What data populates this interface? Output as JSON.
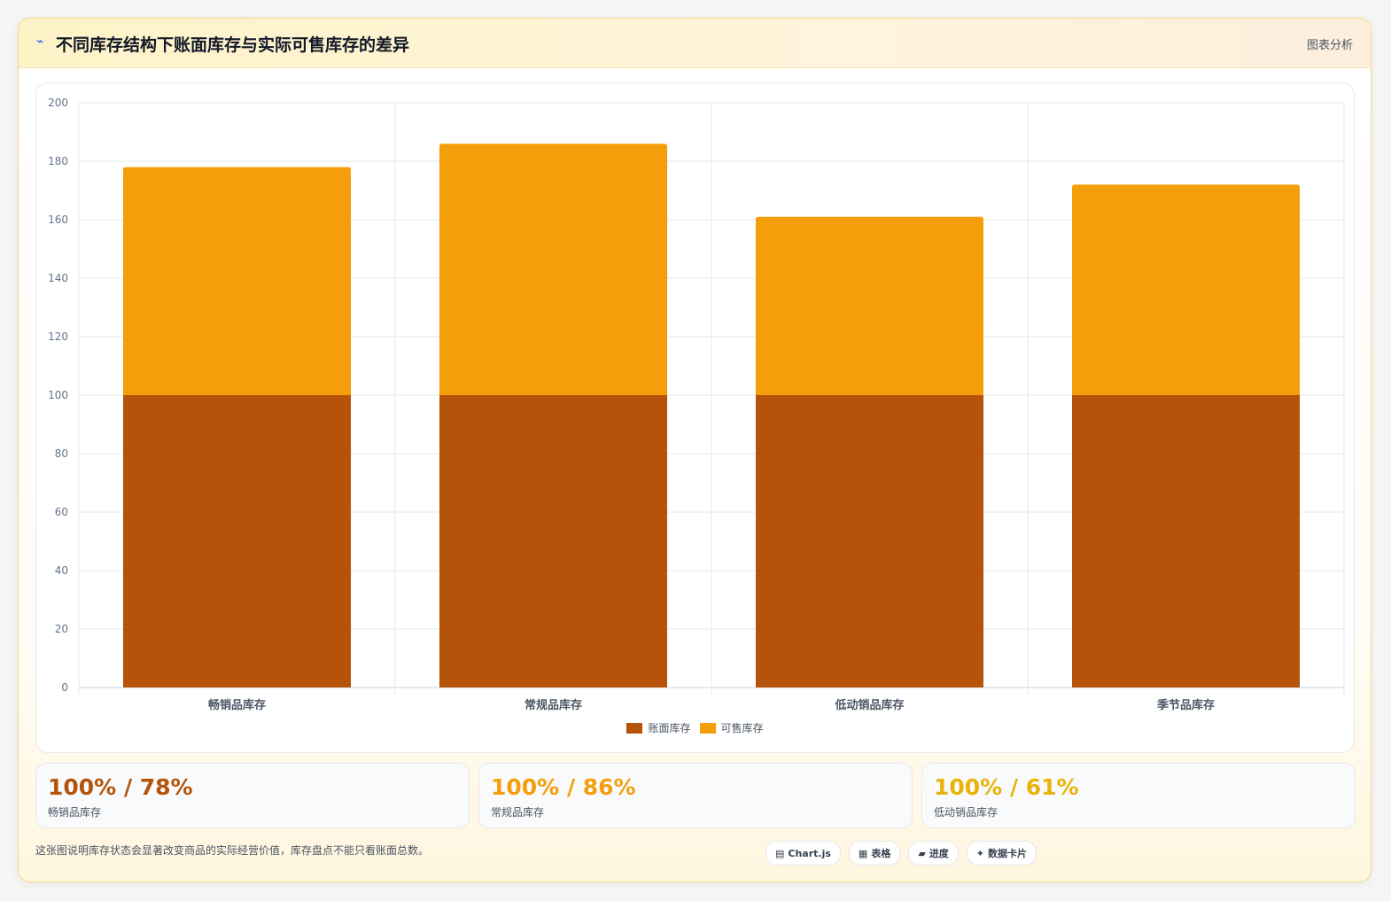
{
  "header": {
    "icon": "chart-line-icon",
    "title": "不同库存结构下账面库存与实际可售库存的差异",
    "tag": "图表分析"
  },
  "chart_data": {
    "type": "bar",
    "stacked": true,
    "categories": [
      "畅销品库存",
      "常规品库存",
      "低动销品库存",
      "季节品库存"
    ],
    "series": [
      {
        "name": "账面库存",
        "values": [
          100,
          100,
          100,
          100
        ],
        "color": "#b45309"
      },
      {
        "name": "可售库存",
        "values": [
          78,
          86,
          61,
          72
        ],
        "color": "#f59e0b"
      }
    ],
    "ylim": [
      0,
      200
    ],
    "yticks": [
      0,
      20,
      40,
      60,
      80,
      100,
      120,
      140,
      160,
      180,
      200
    ],
    "grid": true,
    "legend": "bottom-center"
  },
  "stats": [
    {
      "value": "100% / 78%",
      "label": "畅销品库存",
      "color": "#b45309"
    },
    {
      "value": "100% / 86%",
      "label": "常规品库存",
      "color": "#f59e0b"
    },
    {
      "value": "100% / 61%",
      "label": "低动销品库存",
      "color": "#eab308"
    }
  ],
  "footer": {
    "note": "这张图说明库存状态会显著改变商品的实际经营价值，库存盘点不能只看账面总数。",
    "chips": [
      {
        "icon": "chart-icon",
        "glyph": "▤",
        "label": "Chart.js"
      },
      {
        "icon": "table-icon",
        "glyph": "▦",
        "label": "表格"
      },
      {
        "icon": "progress-icon",
        "glyph": "▰",
        "label": "进度"
      },
      {
        "icon": "sparkle-icon",
        "glyph": "✦",
        "label": "数据卡片"
      }
    ]
  }
}
